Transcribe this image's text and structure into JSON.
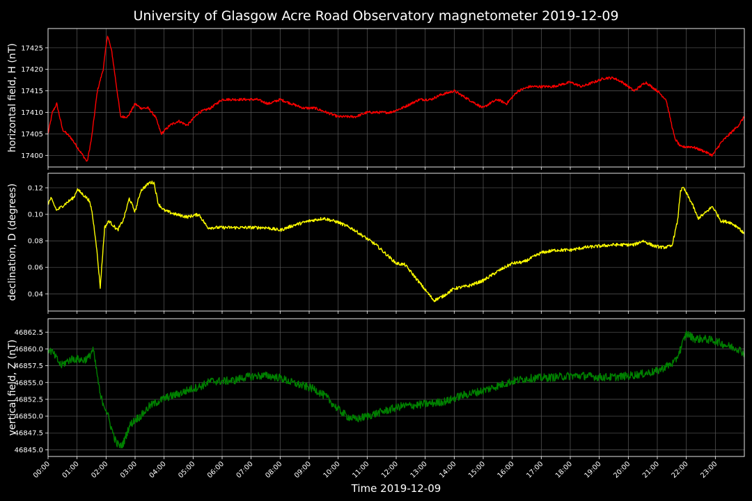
{
  "title": "University of Glasgow Acre Road Observatory magnetometer 2019-12-09",
  "xlabel": "Time 2019-12-09",
  "x_ticks": [
    "00:00",
    "01:00",
    "02:00",
    "03:00",
    "04:00",
    "05:00",
    "06:00",
    "07:00",
    "08:00",
    "09:00",
    "10:00",
    "11:00",
    "12:00",
    "13:00",
    "14:00",
    "15:00",
    "16:00",
    "17:00",
    "18:00",
    "19:00",
    "20:00",
    "21:00",
    "22:00",
    "23:00"
  ],
  "chart_data": [
    {
      "type": "line",
      "ylabel": "horizontal field, H (nT)",
      "color": "#ff0000",
      "xlim": [
        0,
        24
      ],
      "ylim": [
        17397.3,
        17429.5
      ],
      "yticks": [
        17400,
        17405,
        17410,
        17415,
        17420,
        17425
      ],
      "ytick_labels": [
        "17400",
        "17405",
        "17410",
        "17415",
        "17420",
        "17425"
      ],
      "noise": 0.3,
      "x": [
        0,
        0.15,
        0.3,
        0.5,
        0.8,
        1.0,
        1.2,
        1.35,
        1.5,
        1.7,
        1.9,
        2.05,
        2.2,
        2.5,
        2.75,
        3.0,
        3.2,
        3.45,
        3.7,
        3.9,
        4.2,
        4.5,
        4.8,
        5.2,
        5.6,
        6.0,
        6.4,
        6.8,
        7.2,
        7.6,
        8.0,
        8.4,
        8.8,
        9.2,
        9.6,
        10.0,
        10.3,
        10.6,
        11.0,
        11.4,
        11.8,
        12.2,
        12.5,
        12.8,
        13.2,
        13.5,
        14.0,
        14.5,
        15.0,
        15.2,
        15.5,
        15.8,
        16.2,
        16.6,
        17.0,
        17.4,
        18.0,
        18.4,
        18.8,
        19.2,
        19.5,
        19.8,
        20.2,
        20.6,
        21.0,
        21.3,
        21.6,
        21.8,
        22.2,
        22.6,
        22.9,
        23.2,
        23.5,
        23.8,
        24.0
      ],
      "y": [
        17405,
        17410,
        17412,
        17406,
        17404,
        17402,
        17400,
        17398.5,
        17404,
        17415,
        17420,
        17428,
        17424,
        17409,
        17409,
        17412,
        17411,
        17411,
        17409,
        17405,
        17407,
        17408,
        17407,
        17410,
        17411,
        17413,
        17413,
        17413,
        17413,
        17412,
        17413,
        17412,
        17411,
        17411,
        17410,
        17409,
        17409,
        17409,
        17410,
        17410,
        17410,
        17411,
        17412,
        17413,
        17413,
        17414,
        17415,
        17413,
        17411,
        17412,
        17413,
        17412,
        17415,
        17416,
        17416,
        17416,
        17417,
        17416,
        17417,
        17418,
        17418,
        17417,
        17415,
        17417,
        17415,
        17413,
        17404,
        17402,
        17402,
        17401,
        17400,
        17403,
        17405,
        17407,
        17409
      ]
    },
    {
      "type": "line",
      "ylabel": "declination, D (degrees)",
      "color": "#ffff00",
      "xlim": [
        0,
        24
      ],
      "ylim": [
        0.027,
        0.131
      ],
      "yticks": [
        0.04,
        0.06,
        0.08,
        0.1,
        0.12
      ],
      "ytick_labels": [
        "0.04",
        "0.06",
        "0.08",
        "0.10",
        "0.12"
      ],
      "noise": 0.0012,
      "x": [
        0,
        0.1,
        0.3,
        0.6,
        0.9,
        1.0,
        1.2,
        1.4,
        1.5,
        1.65,
        1.8,
        1.95,
        2.1,
        2.4,
        2.6,
        2.8,
        3.0,
        3.2,
        3.5,
        3.65,
        3.8,
        4.0,
        4.4,
        4.8,
        5.2,
        5.5,
        6.0,
        6.5,
        7.0,
        7.5,
        8.0,
        8.5,
        9.0,
        9.5,
        10.0,
        10.5,
        10.9,
        11.3,
        11.6,
        12.0,
        12.3,
        12.6,
        13.0,
        13.3,
        13.6,
        14.0,
        14.5,
        15.0,
        15.5,
        16.0,
        16.4,
        17.0,
        17.5,
        18.0,
        18.5,
        19.0,
        19.5,
        20.2,
        20.5,
        20.9,
        21.2,
        21.5,
        21.7,
        21.8,
        21.9,
        22.2,
        22.4,
        22.6,
        22.9,
        23.2,
        23.5,
        23.8,
        24.0
      ],
      "y": [
        0.108,
        0.112,
        0.103,
        0.108,
        0.113,
        0.119,
        0.115,
        0.111,
        0.104,
        0.08,
        0.045,
        0.09,
        0.095,
        0.088,
        0.096,
        0.112,
        0.102,
        0.118,
        0.124,
        0.124,
        0.108,
        0.103,
        0.1,
        0.098,
        0.1,
        0.09,
        0.09,
        0.09,
        0.09,
        0.09,
        0.088,
        0.092,
        0.095,
        0.097,
        0.094,
        0.089,
        0.083,
        0.077,
        0.071,
        0.063,
        0.062,
        0.054,
        0.043,
        0.035,
        0.038,
        0.044,
        0.046,
        0.05,
        0.057,
        0.063,
        0.064,
        0.071,
        0.073,
        0.073,
        0.075,
        0.076,
        0.077,
        0.077,
        0.08,
        0.076,
        0.075,
        0.076,
        0.095,
        0.118,
        0.12,
        0.108,
        0.097,
        0.1,
        0.106,
        0.095,
        0.094,
        0.09,
        0.085
      ]
    },
    {
      "type": "line",
      "ylabel": "vertical field, Z (nT)",
      "color": "#008000",
      "xlim": [
        0,
        24
      ],
      "ylim": [
        46844.0,
        46864.5
      ],
      "yticks": [
        46845.0,
        46847.5,
        46850.0,
        46852.5,
        46855.0,
        46857.5,
        46860.0,
        46862.5
      ],
      "ytick_labels": [
        "46845.0",
        "46847.5",
        "46850.0",
        "46852.5",
        "46855.0",
        "46857.5",
        "46860.0",
        "46862.5"
      ],
      "noise": 0.6,
      "x": [
        0,
        0.15,
        0.3,
        0.45,
        0.6,
        0.8,
        1.0,
        1.2,
        1.4,
        1.55,
        1.7,
        1.8,
        2.0,
        2.2,
        2.35,
        2.5,
        2.6,
        2.8,
        3.0,
        3.2,
        3.5,
        3.8,
        4.1,
        4.5,
        4.9,
        5.3,
        5.6,
        6.0,
        6.4,
        6.8,
        7.2,
        7.6,
        8.0,
        8.4,
        8.8,
        9.2,
        9.6,
        10.0,
        10.3,
        10.6,
        11.0,
        11.4,
        11.8,
        12.2,
        12.6,
        13.0,
        13.4,
        13.8,
        14.2,
        14.6,
        15.0,
        15.5,
        16.0,
        16.5,
        17.0,
        17.5,
        18.0,
        18.5,
        19.0,
        19.5,
        20.0,
        20.5,
        21.0,
        21.3,
        21.6,
        21.8,
        22.0,
        22.3,
        22.6,
        23.0,
        23.4,
        23.8,
        24.0
      ],
      "y": [
        46860,
        46859.5,
        46858.5,
        46857.5,
        46858,
        46858.5,
        46858.5,
        46858.3,
        46858.7,
        46860,
        46856,
        46853,
        46851,
        46848,
        46846,
        46845.5,
        46846,
        46848.5,
        46849.5,
        46850,
        46851.5,
        46852.2,
        46852.8,
        46853.3,
        46854,
        46854.5,
        46855.2,
        46855.2,
        46855.3,
        46855.8,
        46856,
        46856,
        46855.7,
        46855,
        46854.5,
        46854,
        46852.8,
        46851,
        46850,
        46849.5,
        46850,
        46850.5,
        46851,
        46851.5,
        46851.6,
        46851.8,
        46852,
        46852.3,
        46853,
        46853.4,
        46853.8,
        46854.5,
        46855.2,
        46855.6,
        46855.7,
        46855.8,
        46856,
        46856,
        46855.8,
        46855.8,
        46856,
        46856.3,
        46856.7,
        46857.4,
        46858,
        46860,
        46862.3,
        46861.5,
        46861.5,
        46861.2,
        46860.5,
        46860,
        46859.3
      ]
    }
  ]
}
